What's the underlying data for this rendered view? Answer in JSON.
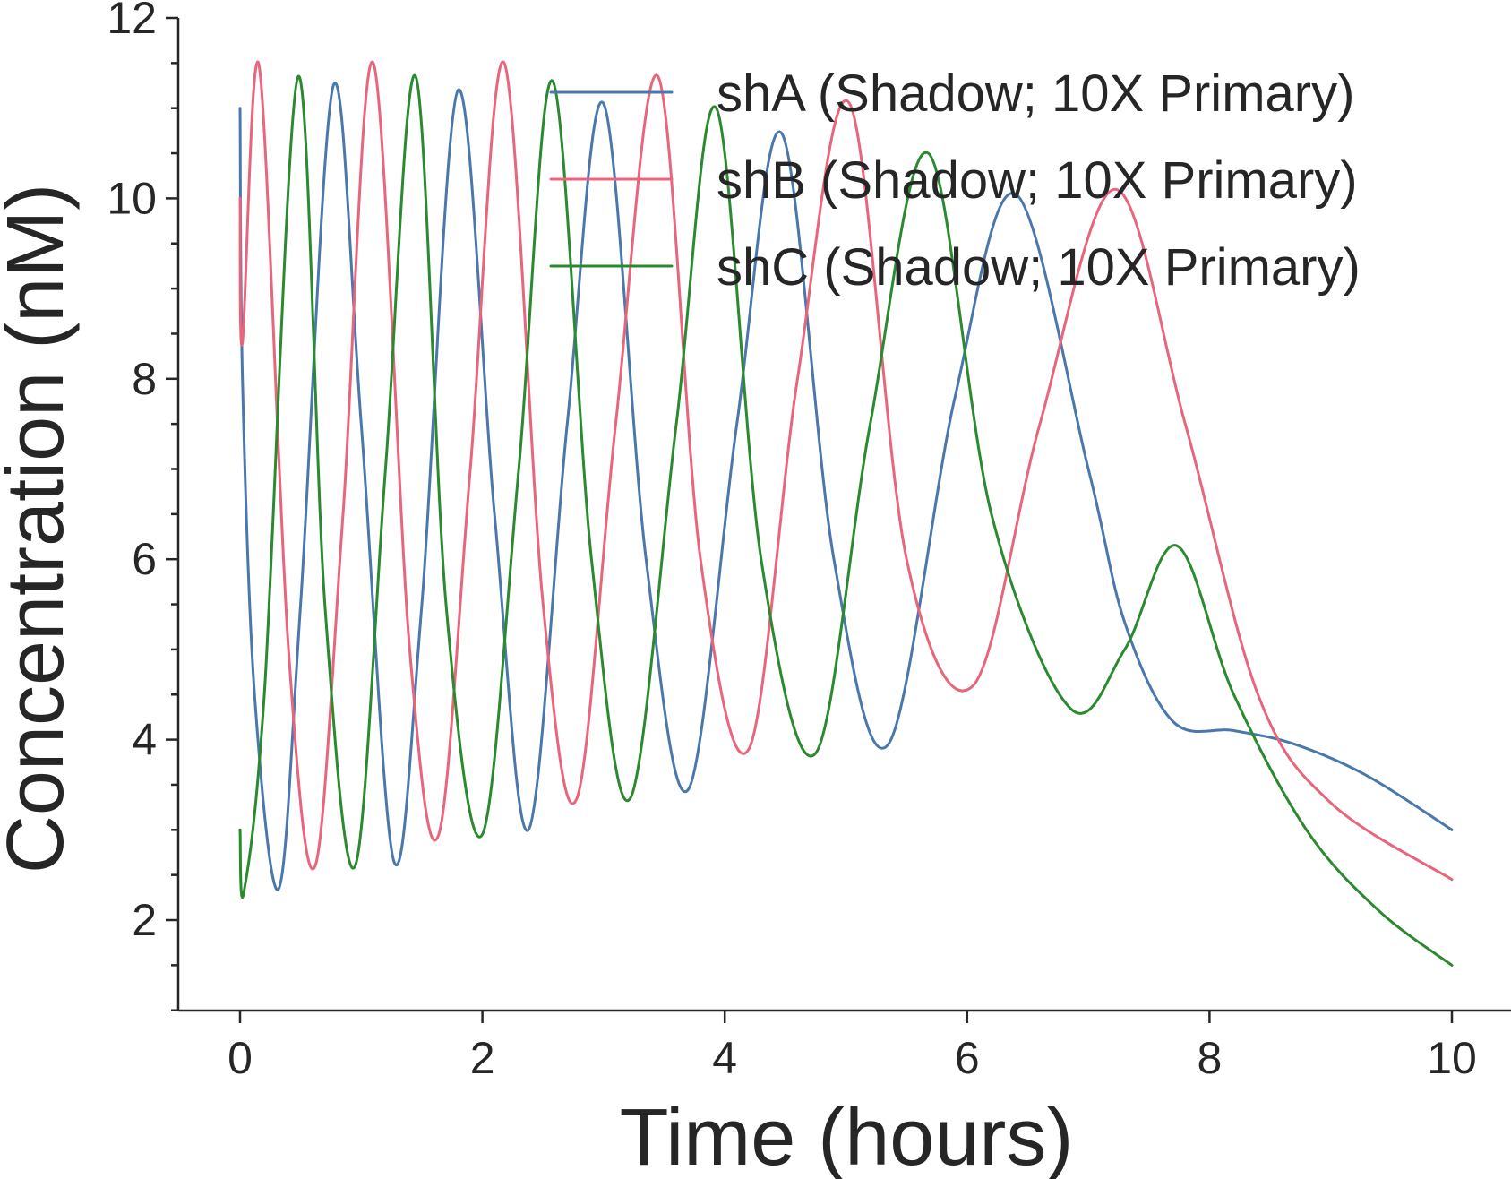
{
  "chart_data": {
    "type": "line",
    "title": "",
    "xlabel": "Time (hours)",
    "ylabel": "Concentration (nM)",
    "xlim": [
      -0.5,
      10.5
    ],
    "ylim": [
      1,
      12
    ],
    "xticks": [
      0,
      2,
      4,
      6,
      8,
      10
    ],
    "yticks": [
      2,
      4,
      6,
      8,
      10,
      12
    ],
    "xtick_labels": [
      "0",
      "2",
      "4",
      "6",
      "8",
      "10"
    ],
    "ytick_labels": [
      "2",
      "4",
      "6",
      "8",
      "10",
      "12"
    ],
    "y_minor_step": 0.5,
    "grid": false,
    "legend_position": "top-right",
    "series": [
      {
        "name": "shA (Shadow; 10X Primary)",
        "color": "#4a78ac",
        "points": [
          [
            0.0,
            11.0
          ],
          [
            0.02,
            8.0
          ],
          [
            0.12,
            4.5
          ],
          [
            0.32,
            2.35
          ],
          [
            0.5,
            5.5
          ],
          [
            0.77,
            11.25
          ],
          [
            1.0,
            7.5
          ],
          [
            1.27,
            2.65
          ],
          [
            1.5,
            5.5
          ],
          [
            1.8,
            11.2
          ],
          [
            2.1,
            6.5
          ],
          [
            2.38,
            3.0
          ],
          [
            2.7,
            7.5
          ],
          [
            3.0,
            11.05
          ],
          [
            3.35,
            6.0
          ],
          [
            3.7,
            3.45
          ],
          [
            4.1,
            7.5
          ],
          [
            4.47,
            10.72
          ],
          [
            4.9,
            6.0
          ],
          [
            5.35,
            3.95
          ],
          [
            5.9,
            7.8
          ],
          [
            6.4,
            10.05
          ],
          [
            7.0,
            7.0
          ],
          [
            7.3,
            5.3
          ],
          [
            7.7,
            4.2
          ],
          [
            8.2,
            4.1
          ],
          [
            8.7,
            3.95
          ],
          [
            9.3,
            3.6
          ],
          [
            10.0,
            3.0
          ]
        ]
      },
      {
        "name": "shB (Shadow; 10X Primary)",
        "color": "#e8667c",
        "points": [
          [
            0.0,
            10.0
          ],
          [
            0.02,
            8.4
          ],
          [
            0.16,
            11.45
          ],
          [
            0.4,
            5.0
          ],
          [
            0.62,
            2.6
          ],
          [
            0.85,
            6.5
          ],
          [
            1.1,
            11.5
          ],
          [
            1.4,
            5.0
          ],
          [
            1.64,
            2.95
          ],
          [
            1.9,
            7.0
          ],
          [
            2.18,
            11.5
          ],
          [
            2.5,
            5.5
          ],
          [
            2.78,
            3.35
          ],
          [
            3.1,
            7.5
          ],
          [
            3.45,
            11.35
          ],
          [
            3.8,
            6.0
          ],
          [
            4.2,
            3.9
          ],
          [
            4.6,
            8.0
          ],
          [
            5.03,
            11.05
          ],
          [
            5.5,
            6.0
          ],
          [
            6.05,
            4.6
          ],
          [
            6.6,
            7.5
          ],
          [
            7.22,
            10.1
          ],
          [
            7.8,
            7.5
          ],
          [
            8.4,
            4.5
          ],
          [
            9.0,
            3.3
          ],
          [
            10.0,
            2.45
          ]
        ]
      },
      {
        "name": "shC (Shadow; 10X Primary)",
        "color": "#2b8a2f",
        "points": [
          [
            0.0,
            3.0
          ],
          [
            0.03,
            2.3
          ],
          [
            0.2,
            4.5
          ],
          [
            0.48,
            11.35
          ],
          [
            0.7,
            5.5
          ],
          [
            0.95,
            2.6
          ],
          [
            1.2,
            7.0
          ],
          [
            1.45,
            11.35
          ],
          [
            1.7,
            5.5
          ],
          [
            2.0,
            2.95
          ],
          [
            2.3,
            7.0
          ],
          [
            2.58,
            11.3
          ],
          [
            2.9,
            6.0
          ],
          [
            3.22,
            3.35
          ],
          [
            3.6,
            7.5
          ],
          [
            3.93,
            11.0
          ],
          [
            4.3,
            6.0
          ],
          [
            4.75,
            3.85
          ],
          [
            5.2,
            7.5
          ],
          [
            5.68,
            10.5
          ],
          [
            6.2,
            6.5
          ],
          [
            6.85,
            4.35
          ],
          [
            7.3,
            5.0
          ],
          [
            7.73,
            6.15
          ],
          [
            8.2,
            4.5
          ],
          [
            8.8,
            3.0
          ],
          [
            9.4,
            2.1
          ],
          [
            10.0,
            1.5
          ]
        ]
      }
    ]
  }
}
